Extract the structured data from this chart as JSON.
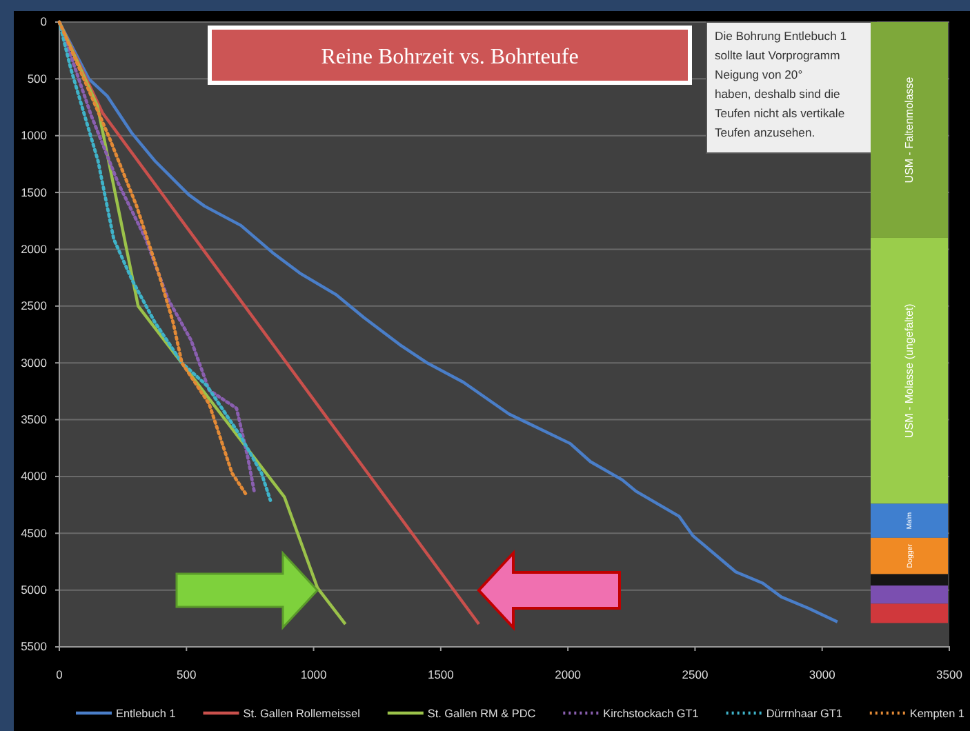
{
  "chart_data": [
    {
      "type": "line",
      "title": "Reine Bohrzeit vs. Bohrteufe",
      "xlim": [
        0,
        3500
      ],
      "xticks": [
        0,
        500,
        1000,
        1500,
        2000,
        2500,
        3000,
        3500
      ],
      "ylim": [
        5500,
        0
      ],
      "yticks": [
        0,
        500,
        1000,
        1500,
        2000,
        2500,
        3000,
        3500,
        4000,
        4500,
        5000,
        5500
      ],
      "grid": "y",
      "legend": "bottom",
      "marker": "none",
      "annotations": [
        "Die Bohrung Entlebuch 1\nsollte laut Vorprogramm\nNeigung von 20°\nhaben, deshalb sind die\nTeufen nicht als vertikale\nTeufen anzusehen."
      ],
      "series": [
        {
          "name": "Entlebuch 1",
          "color": "#4a7ec8",
          "line_style": "solid",
          "x": [
            0,
            116,
            188,
            286,
            375,
            509,
            571,
            714,
            839,
            946,
            1089,
            1197,
            1339,
            1446,
            1589,
            1768,
            2009,
            2089,
            2214,
            2268,
            2437,
            2491,
            2660,
            2767,
            2839,
            2946,
            3060
          ],
          "values": [
            0,
            500,
            650,
            980,
            1220,
            1520,
            1620,
            1790,
            2030,
            2210,
            2400,
            2600,
            2840,
            3000,
            3170,
            3450,
            3710,
            3870,
            4030,
            4130,
            4350,
            4520,
            4840,
            4940,
            5060,
            5160,
            5280
          ]
        },
        {
          "name": "St. Gallen Rollemeissel",
          "color": "#c9504c",
          "line_style": "solid",
          "x": [
            0,
            170,
            1650
          ],
          "values": [
            0,
            800,
            5300
          ]
        },
        {
          "name": "St. Gallen RM & PDC",
          "color": "#9bc24a",
          "line_style": "solid",
          "x": [
            0,
            150,
            310,
            885,
            1015,
            1125
          ],
          "values": [
            0,
            740,
            2500,
            4180,
            4980,
            5300
          ]
        },
        {
          "name": "Kirchstockach GT1",
          "color": "#8a5fb0",
          "line_style": "dotted",
          "x": [
            0,
            125,
            232,
            340,
            428,
            518,
            589,
            697,
            741,
            768
          ],
          "values": [
            0,
            820,
            1420,
            1910,
            2440,
            2800,
            3240,
            3400,
            3830,
            4150
          ]
        },
        {
          "name": "Dürrnhaar GT1",
          "color": "#3fb3c9",
          "line_style": "dotted",
          "x": [
            0,
            45,
            152,
            214,
            286,
            375,
            482,
            580,
            714,
            795,
            830
          ],
          "values": [
            0,
            410,
            1220,
            1910,
            2270,
            2640,
            3000,
            3200,
            3650,
            3970,
            4210
          ]
        },
        {
          "name": "Kempten 1",
          "color": "#e38a36",
          "line_style": "dotted",
          "x": [
            0,
            197,
            304,
            393,
            447,
            482,
            589,
            679,
            732
          ],
          "values": [
            0,
            1020,
            1620,
            2230,
            2640,
            3000,
            3360,
            3970,
            4150
          ]
        }
      ]
    },
    {
      "type": "bar",
      "stacked": true,
      "categories": [
        null
      ],
      "ylim": [
        5500,
        0
      ],
      "tick_labels": false,
      "series": [
        {
          "name": "USM - Faltenmolasse",
          "color": "#7ea83a",
          "values": [
            1900
          ]
        },
        {
          "name": "USM - Molasse (ungefaltet)",
          "color": "#9acd4b",
          "values": [
            2340
          ]
        },
        {
          "name": "Malm",
          "color": "#3f7fcf",
          "values": [
            300
          ]
        },
        {
          "name": "Dogger",
          "color": "#f08a24",
          "values": [
            320
          ]
        },
        {
          "color": "#151515",
          "values": [
            100
          ]
        },
        {
          "color": "#7b4fb0",
          "values": [
            160
          ]
        },
        {
          "color": "#d0383c",
          "values": [
            170
          ]
        }
      ]
    }
  ]
}
